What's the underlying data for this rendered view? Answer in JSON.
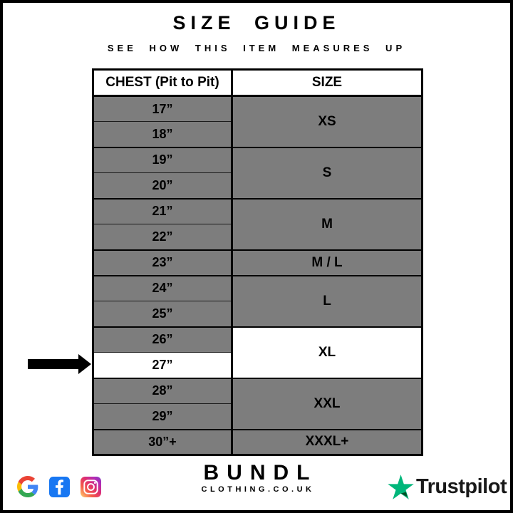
{
  "page": {
    "title": "SIZE GUIDE",
    "subtitle": "SEE HOW THIS ITEM MEASURES UP"
  },
  "table": {
    "headers": {
      "chest": "CHEST (Pit to Pit)",
      "size": "SIZE"
    },
    "groups": [
      {
        "size": "XS",
        "rows": [
          "17”",
          "18”"
        ]
      },
      {
        "size": "S",
        "rows": [
          "19”",
          "20”"
        ]
      },
      {
        "size": "M",
        "rows": [
          "21”",
          "22”"
        ]
      },
      {
        "size": "M / L",
        "rows": [
          "23”"
        ]
      },
      {
        "size": "L",
        "rows": [
          "24”",
          "25”"
        ]
      },
      {
        "size": "XL",
        "rows": [
          "26”",
          "27”"
        ],
        "size_highlight": true,
        "highlighted_rows": [
          "27”"
        ]
      },
      {
        "size": "XXL",
        "rows": [
          "28”",
          "29”"
        ]
      },
      {
        "size": "XXXL+",
        "rows": [
          "30”+"
        ]
      }
    ],
    "colors": {
      "cell_gray": "#7d7d7d",
      "highlight_white": "#ffffff",
      "border_black": "#000000"
    }
  },
  "indicator": {
    "icon": "black-right-arrow-icon",
    "points_to_chest": "27”"
  },
  "footer": {
    "social": {
      "google": "google-icon",
      "facebook": "facebook-icon",
      "instagram": "instagram-icon"
    },
    "brand": {
      "name": "BUNDL",
      "domain": "CLOTHING.CO.UK"
    },
    "trustpilot": {
      "label": "Trustpilot",
      "star_icon": "trustpilot-star-icon"
    }
  },
  "colors": {
    "facebook_blue": "#1877F2",
    "trustpilot_green": "#00B67A",
    "trustpilot_dark_green": "#005128",
    "trustpilot_text": "#191919",
    "google_blue": "#4285F4",
    "google_red": "#EA4335",
    "google_yellow": "#FBBC05",
    "google_green": "#34A853",
    "instagram_gradient": [
      "#FFD776",
      "#F55C47",
      "#E1306C",
      "#B42BB5",
      "#7B3AC2"
    ]
  }
}
